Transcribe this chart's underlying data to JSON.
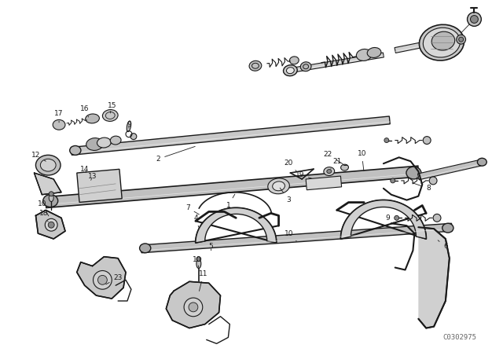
{
  "background_color": "#ffffff",
  "diagram_color": "#1a1a1a",
  "watermark": "C0302975",
  "fig_width": 6.4,
  "fig_height": 4.48,
  "dpi": 100
}
